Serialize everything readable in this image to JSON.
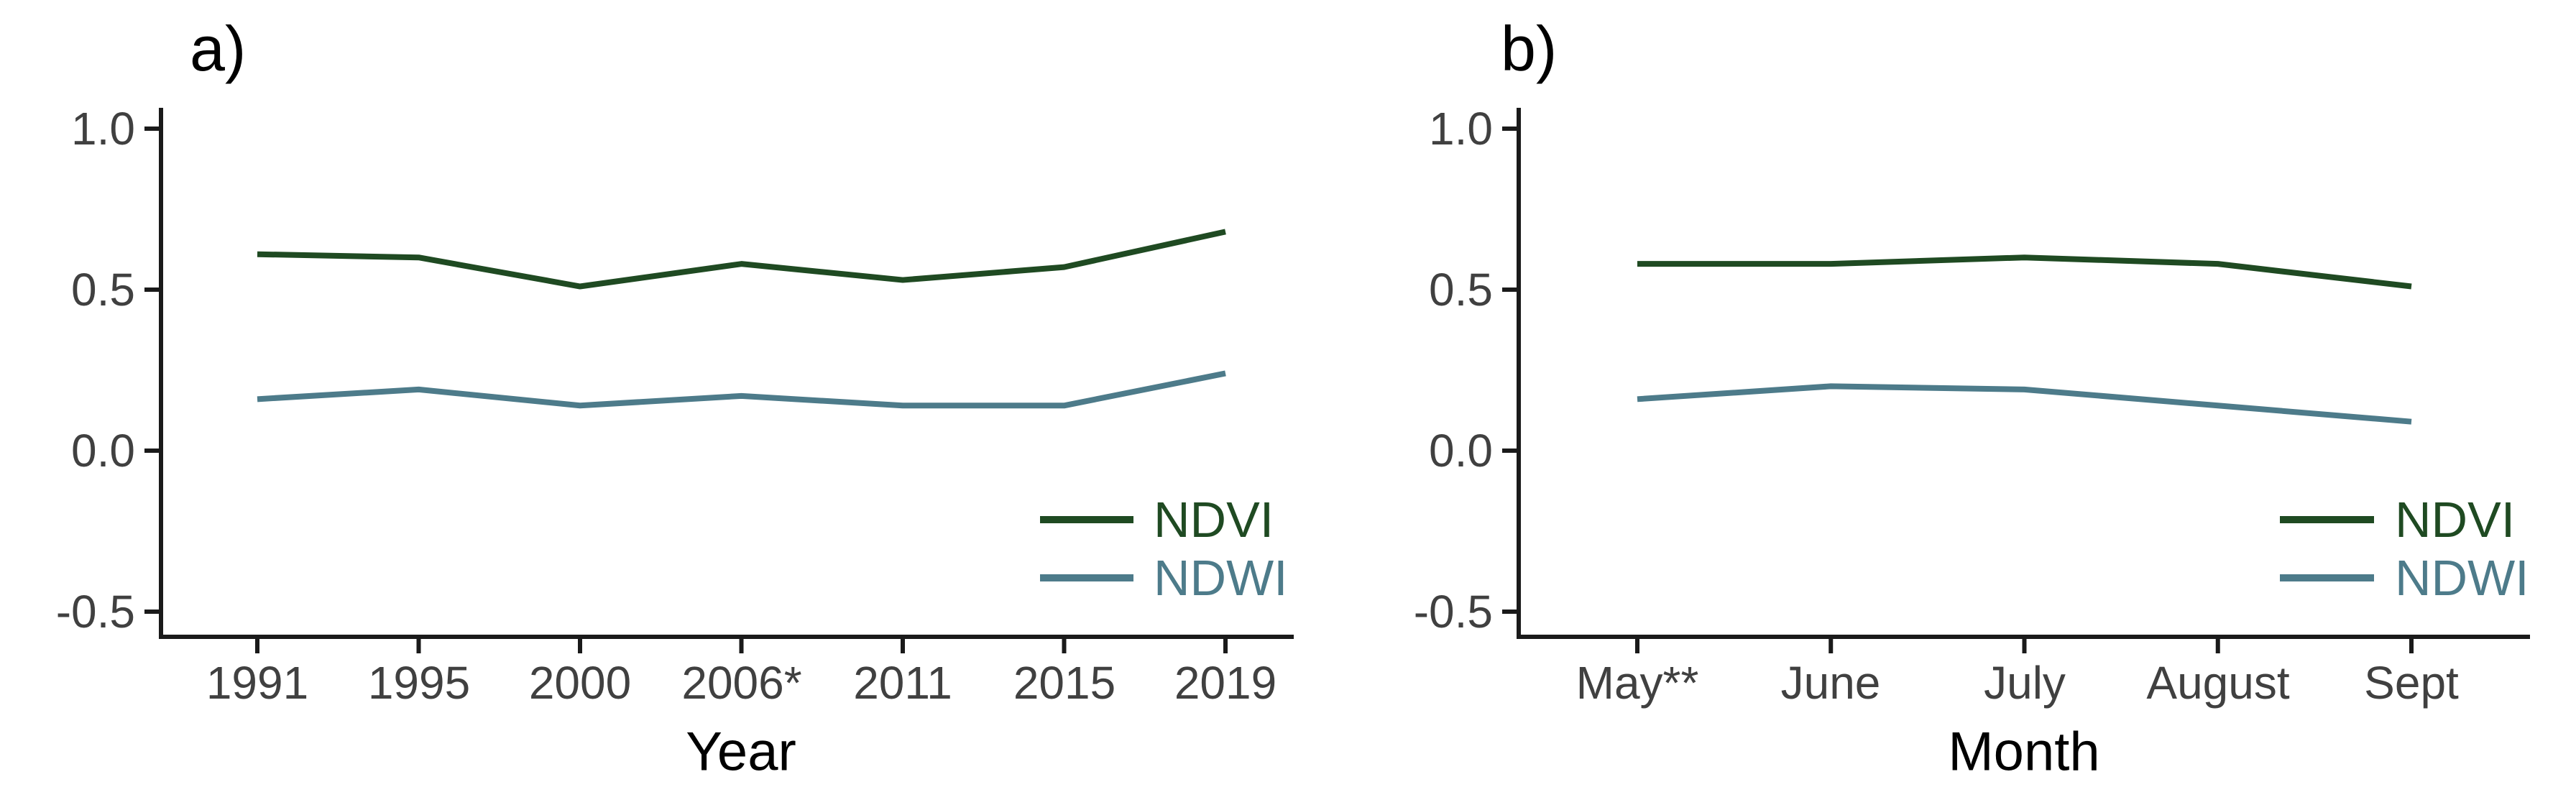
{
  "figure": {
    "background": "#ffffff",
    "axis_color": "#1a1a1a",
    "tick_label_color": "#404040",
    "title_color": "#000000"
  },
  "chart_data": [
    {
      "type": "line",
      "panel_label": "a)",
      "xlabel": "Year",
      "ylabel": "",
      "categories": [
        "1991",
        "1995",
        "2000",
        "2006*",
        "2011",
        "2015",
        "2019"
      ],
      "y_ticks": [
        1.0,
        0.5,
        0.0,
        -0.5
      ],
      "y_ticklabels": [
        "1.0",
        "0.5",
        "0.0",
        "-0.5"
      ],
      "ylim": [
        -0.6,
        1.05
      ],
      "grid": false,
      "legend_position": "inside-bottom-right",
      "series": [
        {
          "name": "NDVI",
          "color": "#1f4a22",
          "values": [
            0.61,
            0.6,
            0.51,
            0.58,
            0.53,
            0.57,
            0.68
          ]
        },
        {
          "name": "NDWI",
          "color": "#4d7b8a",
          "values": [
            0.16,
            0.19,
            0.14,
            0.17,
            0.14,
            0.14,
            0.24
          ]
        }
      ]
    },
    {
      "type": "line",
      "panel_label": "b)",
      "xlabel": "Month",
      "ylabel": "",
      "categories": [
        "May**",
        "June",
        "July",
        "August",
        "Sept"
      ],
      "y_ticks": [
        1.0,
        0.5,
        0.0,
        -0.5
      ],
      "y_ticklabels": [
        "1.0",
        "0.5",
        "0.0",
        "-0.5"
      ],
      "ylim": [
        -0.6,
        1.05
      ],
      "grid": false,
      "legend_position": "inside-bottom-right",
      "series": [
        {
          "name": "NDVI",
          "color": "#1f4a22",
          "values": [
            0.58,
            0.58,
            0.6,
            0.58,
            0.51
          ]
        },
        {
          "name": "NDWI",
          "color": "#4d7b8a",
          "values": [
            0.16,
            0.2,
            0.19,
            0.14,
            0.09
          ]
        }
      ]
    }
  ]
}
